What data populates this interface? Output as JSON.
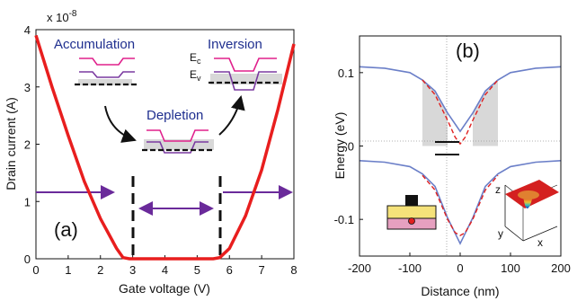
{
  "panel_a": {
    "label": "(a)",
    "exponent": "x 10",
    "exponent_power": "-8",
    "xlabel": "Gate voltage (V)",
    "ylabel": "Drain current (A)",
    "xticks": [
      "0",
      "1",
      "2",
      "3",
      "4",
      "5",
      "6",
      "7",
      "8"
    ],
    "yticks": [
      "0",
      "1",
      "2",
      "3",
      "4"
    ],
    "regimes": {
      "accumulation": "Accumulation",
      "depletion": "Depletion",
      "inversion": "Inversion"
    },
    "band_labels": {
      "ec": "E",
      "ec_sub": "c",
      "ev": "E",
      "ev_sub": "v"
    }
  },
  "panel_b": {
    "label": "(b)",
    "xlabel": "Distance (nm)",
    "ylabel": "Energy (eV)",
    "xticks": [
      "-200",
      "-100",
      "0",
      "100",
      "200"
    ],
    "yticks": [
      "0.1",
      "0",
      "-0.1"
    ],
    "inset_axes": {
      "z": "z",
      "y": "y",
      "x": "x"
    }
  },
  "colors": {
    "red_curve": "#e81e1e",
    "purple_arrow": "#6a2a9a",
    "band_pink": "#e0208c",
    "band_purple": "#7a3aa0",
    "blue_line": "#6b7fc8",
    "dashed_red": "#e02020",
    "shade": "#d8d8d8",
    "regime_text": "#1f2f8f"
  },
  "chart_data": [
    {
      "type": "line",
      "panel": "a",
      "xlabel": "Gate voltage (V)",
      "ylabel": "Drain current (A)",
      "xlim": [
        0,
        8
      ],
      "ylim": [
        0,
        4
      ],
      "y_scale_factor": "x 10^-8",
      "series": [
        {
          "x": [
            0,
            0.5,
            1.0,
            1.5,
            2.0,
            2.5,
            2.7,
            2.9,
            5.5,
            5.7,
            6.0,
            6.5,
            7.0,
            7.5,
            8.0
          ],
          "y": [
            3.9,
            3.0,
            2.15,
            1.35,
            0.7,
            0.18,
            0.02,
            0.0,
            0.0,
            0.02,
            0.18,
            0.75,
            1.55,
            2.6,
            3.75
          ]
        }
      ]
    },
    {
      "type": "line",
      "panel": "b",
      "xlabel": "Distance (nm)",
      "ylabel": "Energy (eV)",
      "xlim": [
        -200,
        200
      ],
      "ylim": [
        -0.15,
        0.15
      ],
      "series": [
        {
          "style": "solid-blue",
          "x": [
            -200,
            -150,
            -100,
            -75,
            -50,
            -25,
            0,
            25,
            50,
            75,
            100,
            150,
            200
          ],
          "y": [
            0.108,
            0.106,
            0.1,
            0.09,
            0.075,
            0.045,
            0.02,
            0.045,
            0.075,
            0.09,
            0.1,
            0.106,
            0.108
          ]
        },
        {
          "style": "solid-blue",
          "x": [
            -200,
            -150,
            -100,
            -75,
            -50,
            -25,
            0,
            25,
            50,
            75,
            100,
            150,
            200
          ],
          "y": [
            -0.02,
            -0.022,
            -0.028,
            -0.038,
            -0.055,
            -0.098,
            -0.133,
            -0.098,
            -0.055,
            -0.038,
            -0.028,
            -0.022,
            -0.02
          ]
        },
        {
          "style": "dashed-red",
          "x": [
            -75,
            -50,
            -25,
            -10,
            0,
            10,
            25,
            50,
            75
          ],
          "y": [
            0.09,
            0.07,
            0.035,
            0.012,
            0.003,
            0.012,
            0.035,
            0.07,
            0.09
          ]
        },
        {
          "style": "dashed-red",
          "x": [
            -75,
            -50,
            -25,
            -10,
            0,
            10,
            25,
            50,
            75
          ],
          "y": [
            -0.04,
            -0.06,
            -0.1,
            -0.118,
            -0.122,
            -0.118,
            -0.1,
            -0.06,
            -0.04
          ]
        }
      ],
      "levels": [
        0.0,
        -0.017
      ]
    }
  ]
}
